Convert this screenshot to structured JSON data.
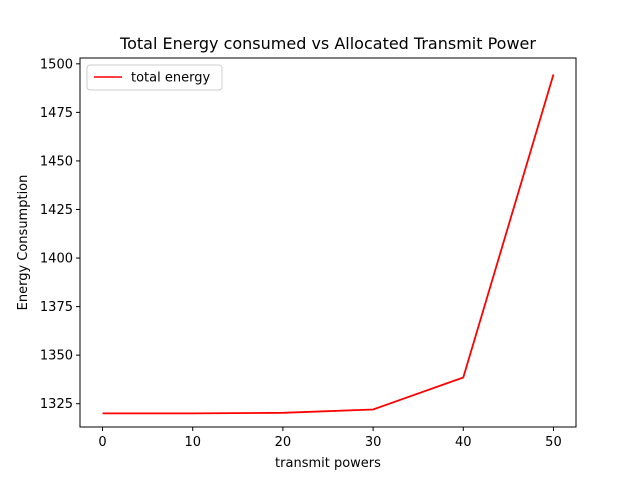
{
  "chart_data": {
    "type": "line",
    "title": "Total Energy consumed vs Allocated Transmit Power",
    "xlabel": "transmit powers",
    "ylabel": "Energy Consumption",
    "xlim": [
      -2.5,
      52.5
    ],
    "ylim": [
      1313,
      1503
    ],
    "xticks": [
      0,
      10,
      20,
      30,
      40,
      50
    ],
    "yticks": [
      1325,
      1350,
      1375,
      1400,
      1425,
      1450,
      1475,
      1500
    ],
    "grid": false,
    "legend_position": "top-left",
    "series": [
      {
        "name": "total energy",
        "color": "#ff0000",
        "x": [
          0,
          10,
          20,
          30,
          40,
          50
        ],
        "y": [
          1320.0,
          1320.0,
          1320.3,
          1322.0,
          1338.5,
          1494.5
        ]
      }
    ]
  }
}
